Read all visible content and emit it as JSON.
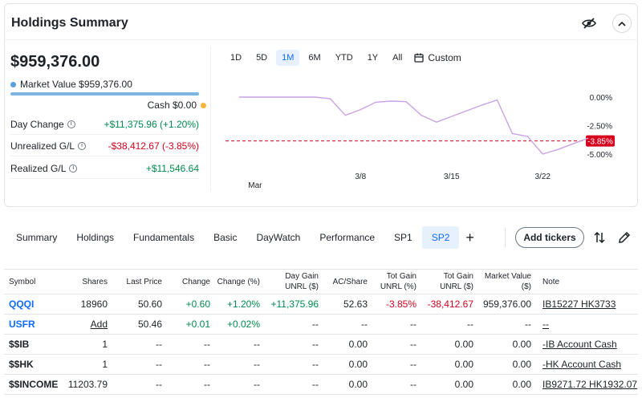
{
  "summary": {
    "title": "Holdings Summary",
    "total_value": "$959,376.00",
    "market_value_label": "Market Value $959,376.00",
    "cash_label": "Cash $0.00",
    "stats": [
      {
        "label": "Day Change",
        "value": "+$11,375.96 (+1.20%)",
        "tone": "pos"
      },
      {
        "label": "Unrealized G/L",
        "value": "-$38,412.67 (-3.85%)",
        "tone": "neg"
      },
      {
        "label": "Realized G/L",
        "value": "+$11,546.64",
        "tone": "pos"
      }
    ],
    "colors": {
      "market_value_dot": "#5aa0dc",
      "cash_dot": "#f5b53f",
      "positive": "#008a4e",
      "negative": "#d6001c",
      "line": "#c9a3e6"
    }
  },
  "chart_controls": {
    "ranges": [
      "1D",
      "5D",
      "1M",
      "6M",
      "YTD",
      "1Y",
      "All"
    ],
    "active_range": "1M",
    "custom_label": "Custom"
  },
  "chart_data": {
    "type": "line",
    "series": [
      {
        "values": [
          0.0,
          0.0,
          0.0,
          0.0,
          0.0,
          0.0,
          -0.15,
          -1.6,
          -1.1,
          -0.45,
          -0.35,
          -0.4,
          -1.6,
          -2.2,
          -1.7,
          -1.2,
          -0.7,
          -0.25,
          -3.2,
          -3.45,
          -5.0,
          -4.6,
          -4.1,
          -3.6
        ]
      }
    ],
    "x_tick_labels": [
      "Mar",
      "3/8",
      "3/15",
      "3/22"
    ],
    "y_tick_labels": [
      "0.00%",
      "-2.50%",
      "-5.00%"
    ],
    "ylim": [
      -5.0,
      0.0
    ],
    "reference_value": -3.85,
    "reference_label": "-3.85%"
  },
  "tabs": {
    "items": [
      "Summary",
      "Holdings",
      "Fundamentals",
      "Basic",
      "DayWatch",
      "Performance",
      "SP1",
      "SP2"
    ],
    "active": "SP2",
    "add_label": "+",
    "add_tickers_label": "Add tickers"
  },
  "table": {
    "headers": {
      "symbol": "Symbol",
      "shares": "Shares",
      "last_price": "Last Price",
      "change": "Change",
      "change_pct": "Change (%)",
      "day_gain_1": "Day Gain",
      "day_gain_2": "UNRL ($)",
      "ac_share": "AC/Share",
      "tot_gain_pct_1": "Tot Gain",
      "tot_gain_pct_2": "UNRL (%)",
      "tot_gain_usd_1": "Tot Gain",
      "tot_gain_usd_2": "UNRL ($)",
      "market_value_1": "Market Value",
      "market_value_2": "($)",
      "note": "Note"
    },
    "rows": [
      {
        "symbol": "QQQI",
        "shares": "18960",
        "last_price": "50.60",
        "change": "+0.60",
        "change_pct": "+1.20%",
        "day_gain": "+11,375.96",
        "ac_share": "52.63",
        "tot_gain_pct": "-3.85%",
        "tot_gain_usd": "-38,412.67",
        "market_value": "959,376.00",
        "note": "IB15227 HK3733"
      },
      {
        "symbol": "USFR",
        "shares": "Add",
        "last_price": "50.46",
        "change": "+0.01",
        "change_pct": "+0.02%",
        "day_gain": "--",
        "ac_share": "--",
        "tot_gain_pct": "--",
        "tot_gain_usd": "--",
        "market_value": "--",
        "note": "--"
      },
      {
        "symbol": "$$IB",
        "shares": "1",
        "last_price": "--",
        "change": "--",
        "change_pct": "--",
        "day_gain": "--",
        "ac_share": "0.00",
        "tot_gain_pct": "--",
        "tot_gain_usd": "0.00",
        "market_value": "0.00",
        "note": "-IB Account Cash"
      },
      {
        "symbol": "$$HK",
        "shares": "1",
        "last_price": "--",
        "change": "--",
        "change_pct": "--",
        "day_gain": "--",
        "ac_share": "0.00",
        "tot_gain_pct": "--",
        "tot_gain_usd": "0.00",
        "market_value": "0.00",
        "note": "-HK Account Cash"
      },
      {
        "symbol": "$$INCOME",
        "shares": "11203.79",
        "last_price": "--",
        "change": "--",
        "change_pct": "--",
        "day_gain": "--",
        "ac_share": "0.00",
        "tot_gain_pct": "--",
        "tot_gain_usd": "0.00",
        "market_value": "0.00",
        "note": "IB9271.72 HK1932.07"
      }
    ]
  }
}
